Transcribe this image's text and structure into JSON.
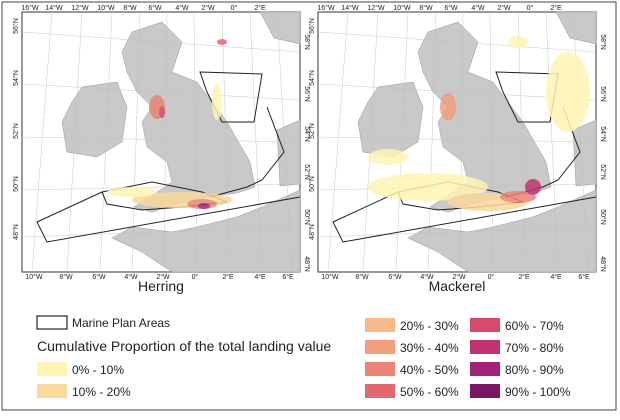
{
  "panels": [
    {
      "title": "Herring",
      "graticule": {
        "top": [
          "16°W",
          "14°W",
          "12°W",
          "10°W",
          "8°W",
          "6°W",
          "4°W",
          "2°W",
          "0°",
          "2°E"
        ],
        "bottom": [
          "10°W",
          "8°W",
          "6°W",
          "4°W",
          "2°W",
          "0°",
          "2°E",
          "4°E",
          "6°E"
        ],
        "left": [
          "56°N",
          "54°N",
          "52°N",
          "50°N",
          "48°N"
        ],
        "right": [
          "58°N",
          "56°N",
          "54°N",
          "52°N",
          "50°N",
          "48°N"
        ]
      }
    },
    {
      "title": "Mackerel",
      "graticule": {
        "top": [
          "16°W",
          "14°W",
          "12°W",
          "10°W",
          "8°W",
          "6°W",
          "4°W",
          "2°W",
          "0°",
          "2°E"
        ],
        "bottom": [
          "10°W",
          "8°W",
          "6°W",
          "4°W",
          "2°W",
          "0°",
          "2°E",
          "4°E",
          "6°E"
        ],
        "left": [
          "56°N",
          "54°N",
          "52°N",
          "50°N",
          "48°N"
        ],
        "right": [
          "58°N",
          "56°N",
          "54°N",
          "52°N",
          "50°N",
          "48°N"
        ]
      }
    }
  ],
  "legend": {
    "boundary": "Marine Plan Areas",
    "heading": "Cumulative Proportion of the total landing value",
    "items": [
      {
        "label": "0% - 10%",
        "color": "#fff4b4"
      },
      {
        "label": "10% - 20%",
        "color": "#fbd89c"
      },
      {
        "label": "20% - 30%",
        "color": "#f6b98a"
      },
      {
        "label": "30% - 40%",
        "color": "#f29e7e"
      },
      {
        "label": "40% - 50%",
        "color": "#ec8376"
      },
      {
        "label": "50% - 60%",
        "color": "#e2686e"
      },
      {
        "label": "60% - 70%",
        "color": "#d8496b"
      },
      {
        "label": "70% - 80%",
        "color": "#bf3371"
      },
      {
        "label": "80% - 90%",
        "color": "#a2237a"
      },
      {
        "label": "90% - 100%",
        "color": "#7a1663"
      }
    ]
  }
}
